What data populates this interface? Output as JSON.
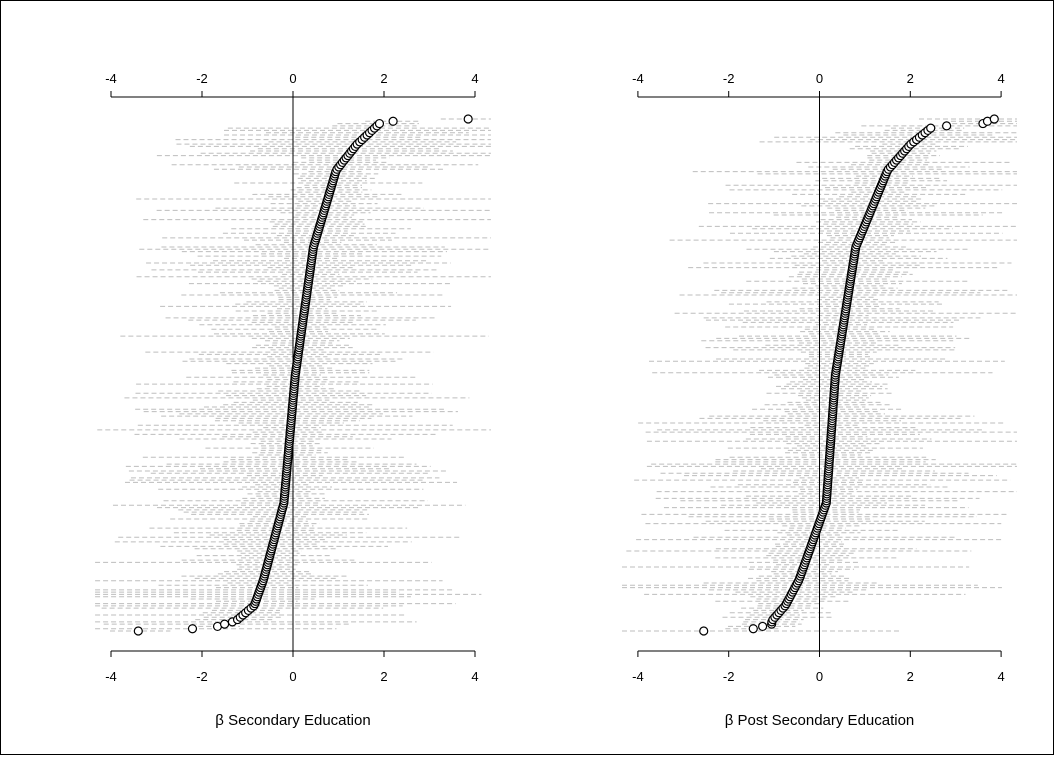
{
  "chart_data": [
    {
      "type": "scatter",
      "subtype": "caterpillar",
      "title": "",
      "xlabel": "β Secondary Education",
      "xlim": [
        -4,
        4
      ],
      "xticks": [
        -4,
        -2,
        0,
        2,
        4
      ],
      "reference_line": 0,
      "n_points": 225,
      "sorted_estimates": {
        "min": -3.4,
        "p1": -2.2,
        "p2": -1.65,
        "p3": -1.5,
        "p4": -1.25,
        "q05": -0.85,
        "q10": -0.65,
        "q25": -0.2,
        "median": 0.05,
        "q75": 0.45,
        "q90": 0.95,
        "q95": 1.4,
        "max_nonoutlier": 1.9,
        "top": [
          2.2,
          3.85
        ]
      },
      "ci_half_width_range": [
        0.6,
        4.3
      ]
    },
    {
      "type": "scatter",
      "subtype": "caterpillar",
      "title": "",
      "xlabel": "β Post Secondary Education",
      "xlim": [
        -4,
        4
      ],
      "xticks": [
        -4,
        -2,
        0,
        2,
        4
      ],
      "reference_line": 0,
      "n_points": 225,
      "sorted_estimates": {
        "min": -2.55,
        "p1": -1.45,
        "p2": -1.25,
        "p3": -1.05,
        "q05": -0.75,
        "q10": -0.45,
        "q25": 0.15,
        "median": 0.35,
        "q75": 0.8,
        "q90": 1.5,
        "q95": 2.0,
        "max_nonoutlier": 2.45,
        "top": [
          2.8,
          3.6,
          3.7,
          3.85
        ]
      },
      "ci_half_width_range": [
        0.6,
        4.4
      ]
    }
  ]
}
